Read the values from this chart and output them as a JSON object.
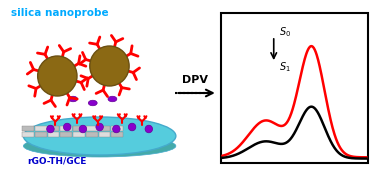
{
  "title_text": "silica nanoprobe",
  "title_color": "#00aaff",
  "label_bottom": "rGO-TH/GCE",
  "label_bottom_color": "#0000cc",
  "dpv_text": "DPV",
  "s0_label": "S₀",
  "s1_label": "S₁",
  "curve_red_color": "#ff0000",
  "curve_black_color": "#000000",
  "arrow_color": "#000000",
  "box_bg": "#f0f0f0",
  "silica_sphere_color": "#8B6914",
  "silica_sphere_edge": "#6B4F10",
  "antibody_color": "#ff0000",
  "graphene_color": "#aaaaaa",
  "thionine_color": "#8800cc",
  "electrode_color": "#55ccdd",
  "electrode_edge": "#44aacc"
}
